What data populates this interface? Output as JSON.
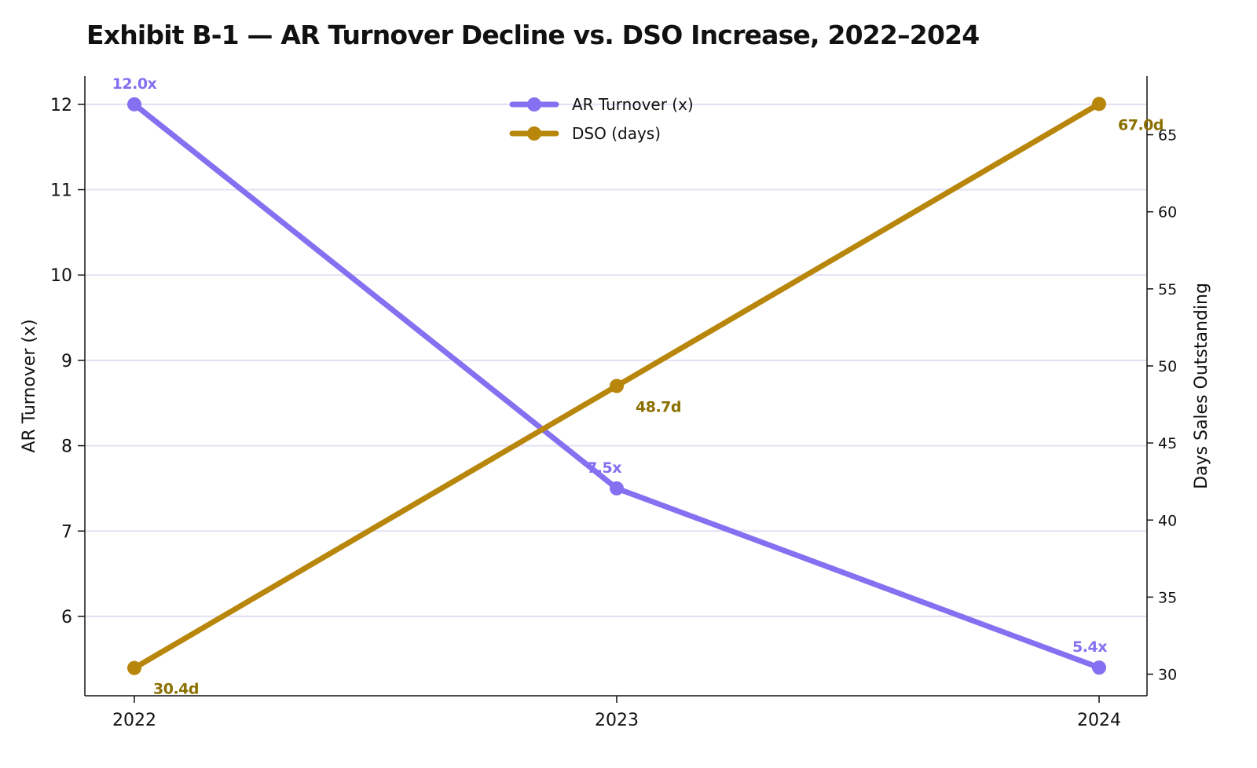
{
  "chart_data": {
    "type": "line",
    "title": "Exhibit B-1 — AR Turnover Decline vs. DSO Increase, 2022–2024",
    "categories": [
      "2022",
      "2023",
      "2024"
    ],
    "ylabel_left": "AR Turnover (x)",
    "ylabel_right": "Days Sales Outstanding",
    "ylim_left": [
      5.07,
      12.33
    ],
    "ylim_right": [
      28.6,
      68.8
    ],
    "yticks_left": [
      6,
      7,
      8,
      9,
      10,
      11,
      12
    ],
    "yticks_right": [
      30,
      35,
      40,
      45,
      50,
      55,
      60,
      65
    ],
    "grid": true,
    "legend_placement": "top-center",
    "series": [
      {
        "name": "AR Turnover (x)",
        "axis": "left",
        "color": "#8470f0",
        "values": [
          12.0,
          7.5,
          5.4
        ],
        "labels": [
          "12.0x",
          "7.5x",
          "5.4x"
        ],
        "label_color": "#8470f0"
      },
      {
        "name": "DSO (days)",
        "axis": "right",
        "color": "#b8860b",
        "values": [
          30.4,
          48.7,
          67.0
        ],
        "labels": [
          "30.4d",
          "48.7d",
          "67.0d"
        ],
        "label_color": "#8b7000"
      }
    ]
  }
}
